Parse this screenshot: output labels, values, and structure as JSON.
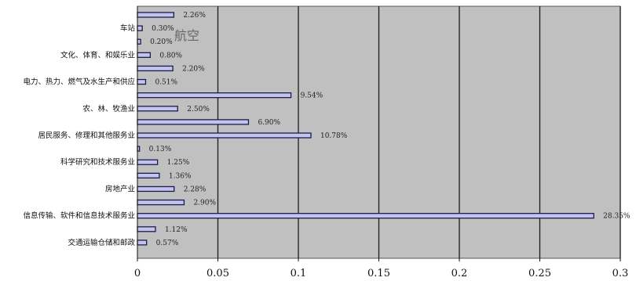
{
  "chart_data": {
    "type": "bar",
    "orientation": "horizontal",
    "xlim": [
      0,
      0.3
    ],
    "x_ticks": [
      "0",
      "0.05",
      "0.1",
      "0.15",
      "0.2",
      "0.25",
      "0.3"
    ],
    "grid": true,
    "overlay_text": "航空",
    "bars": [
      {
        "value": 0.0226,
        "label": "2.26%"
      },
      {
        "value": 0.003,
        "label": "0.30%"
      },
      {
        "value": 0.002,
        "label": "0.20%"
      },
      {
        "value": 0.008,
        "label": "0.80%"
      },
      {
        "value": 0.022,
        "label": "2.20%"
      },
      {
        "value": 0.0051,
        "label": "0.51%"
      },
      {
        "value": 0.0954,
        "label": "9.54%"
      },
      {
        "value": 0.025,
        "label": "2.50%"
      },
      {
        "value": 0.069,
        "label": "6.90%"
      },
      {
        "value": 0.1078,
        "label": "10.78%"
      },
      {
        "value": 0.0013,
        "label": "0.13%"
      },
      {
        "value": 0.0125,
        "label": "1.25%"
      },
      {
        "value": 0.0136,
        "label": "1.36%"
      },
      {
        "value": 0.0228,
        "label": "2.28%"
      },
      {
        "value": 0.029,
        "label": "2.90%"
      },
      {
        "value": 0.2835,
        "label": "28.35%"
      },
      {
        "value": 0.0112,
        "label": "1.12%"
      },
      {
        "value": 0.0057,
        "label": "0.57%"
      }
    ],
    "category_labels": [
      {
        "bar": 1,
        "text": "车站"
      },
      {
        "bar": 3,
        "text": "文化、体育、和娱乐业"
      },
      {
        "bar": 5,
        "text": "电力、热力、燃气及水生产和供应"
      },
      {
        "bar": 7,
        "text": "农、林、牧渔业"
      },
      {
        "bar": 9,
        "text": "居民服务、修理和其他服务业"
      },
      {
        "bar": 11,
        "text": "科学研究和技术服务业"
      },
      {
        "bar": 13,
        "text": "房地产业"
      },
      {
        "bar": 15,
        "text": "信息传输、软件和信息技术服务业"
      },
      {
        "bar": 17,
        "text": "交通运输仓储和邮政"
      }
    ],
    "colors": {
      "plot_background": "#c0c0c0",
      "bar_fill": "#c4c3f0",
      "bar_stroke": "#1c1c4a",
      "grid": "#1a1a1a"
    }
  }
}
